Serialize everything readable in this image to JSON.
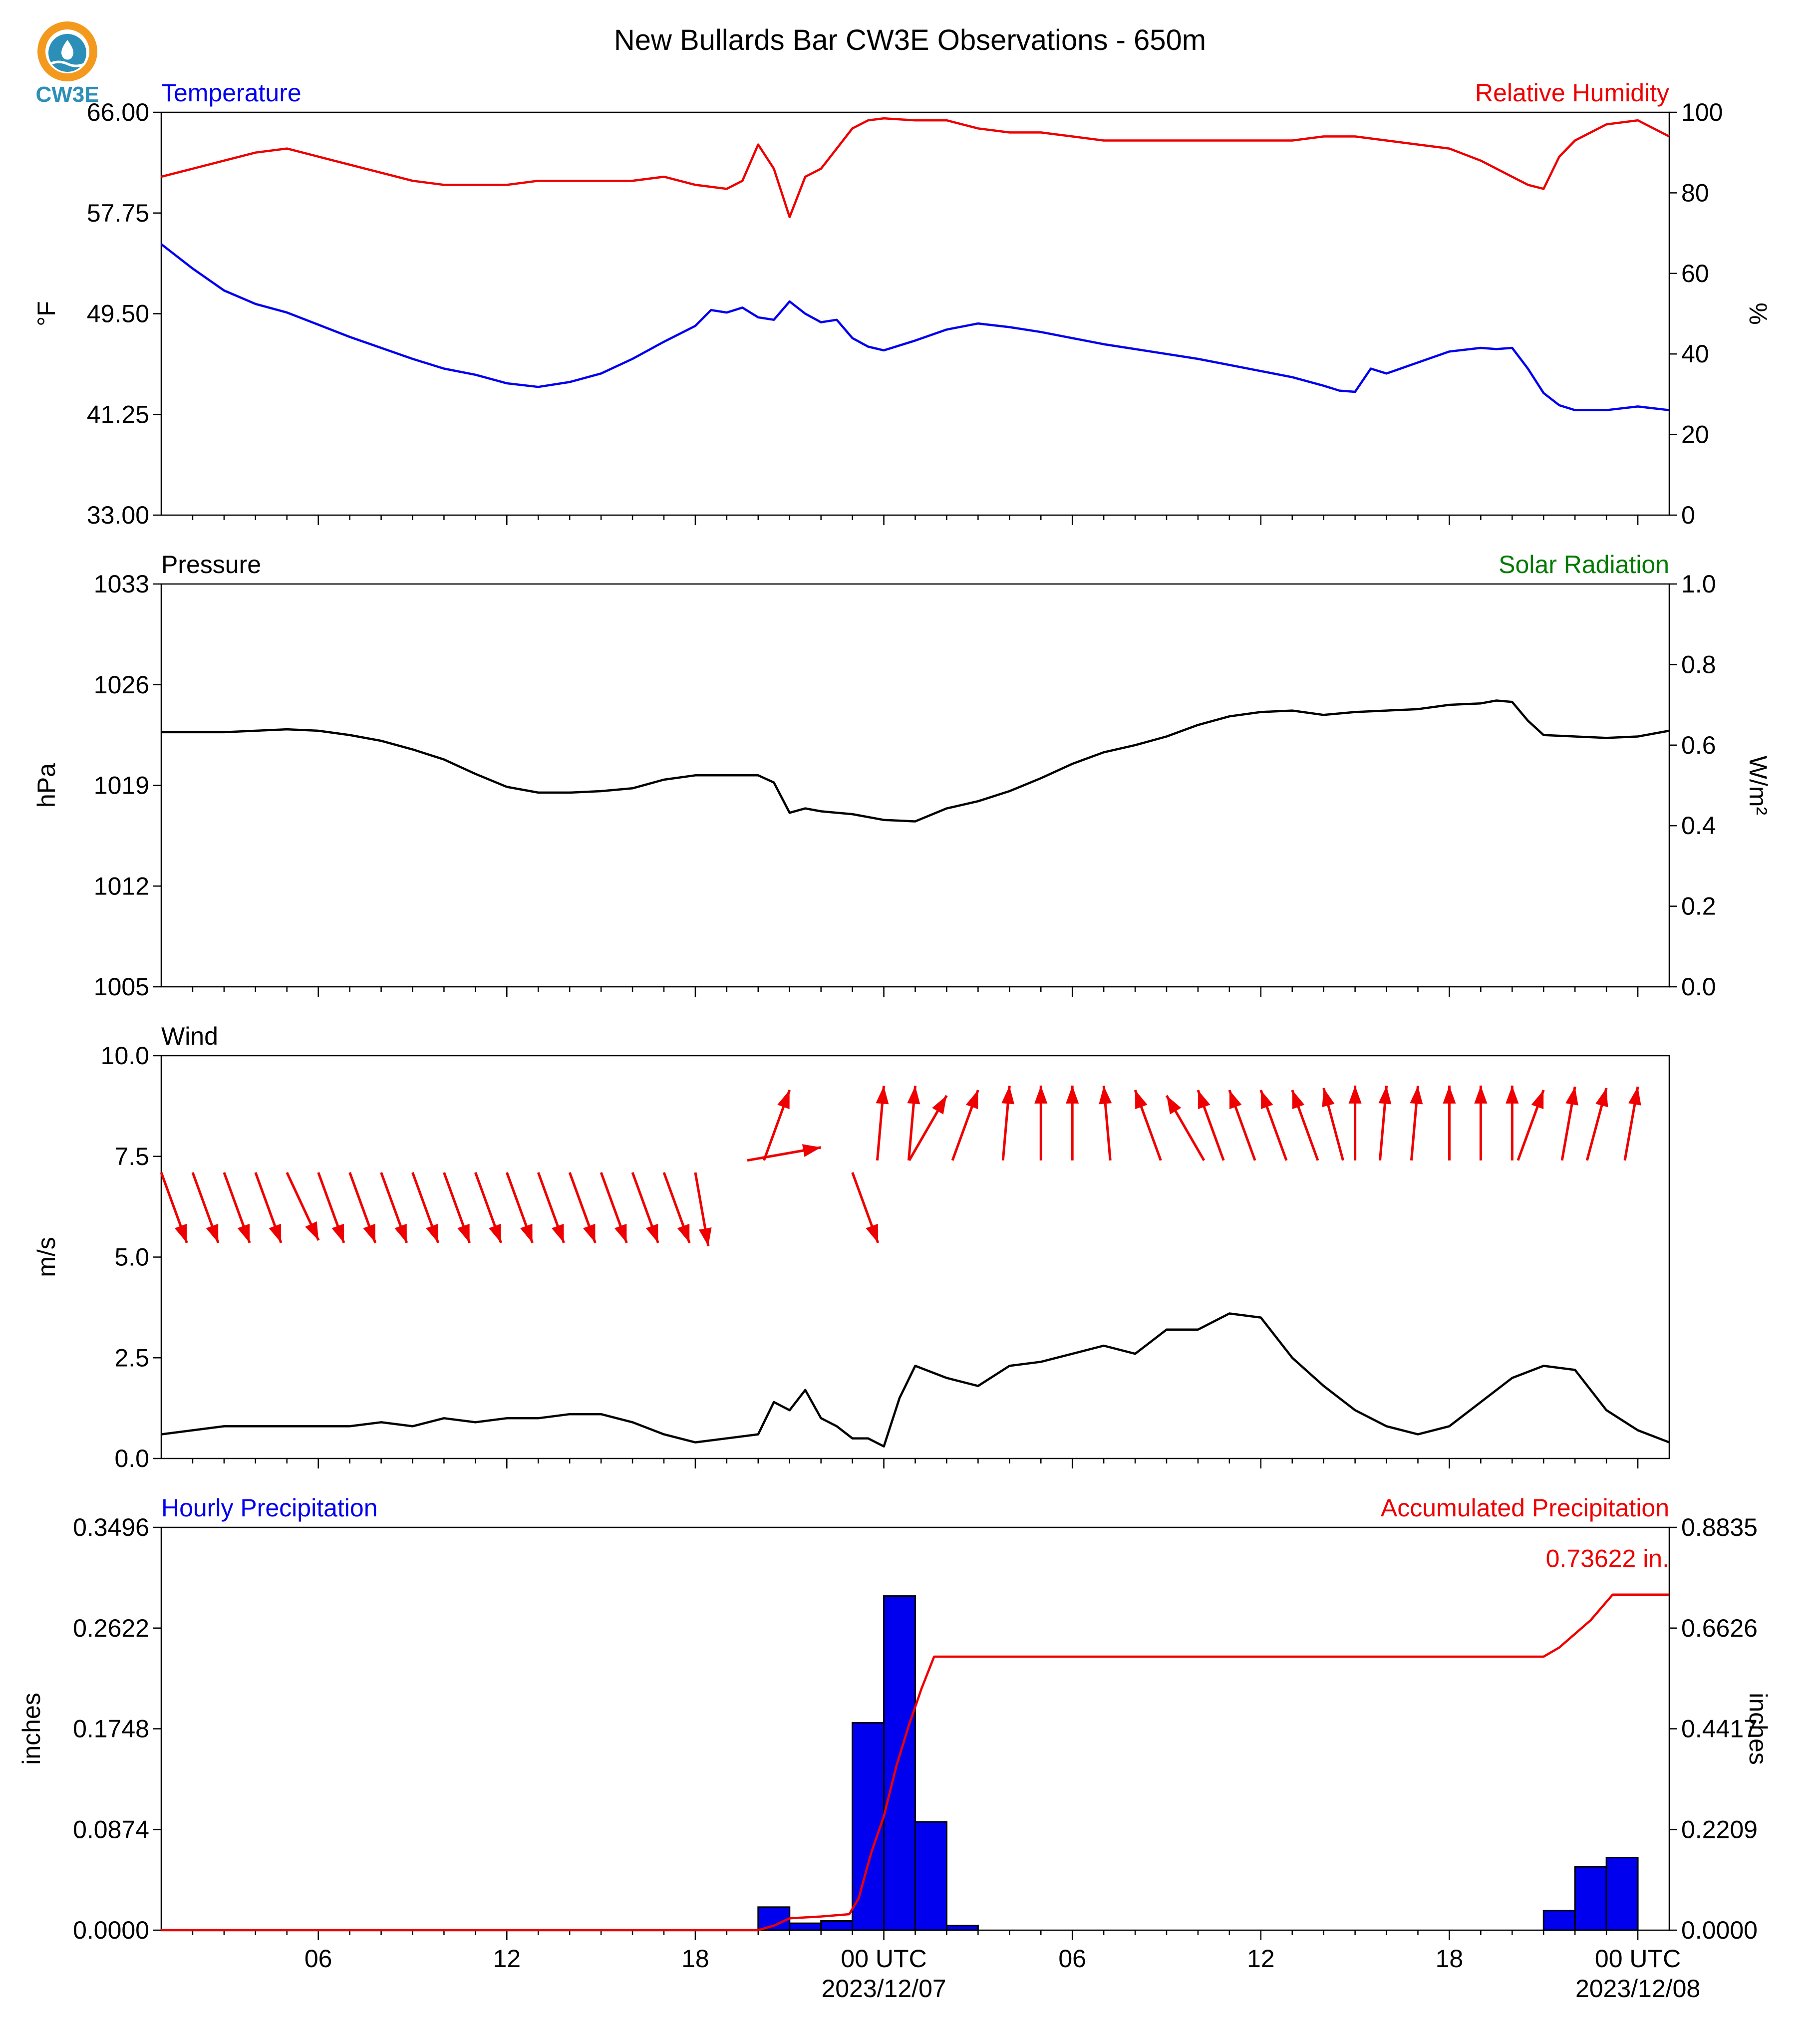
{
  "figure": {
    "title": "New Bullards Bar CW3E Observations - 650m",
    "logo_text": "CW3E",
    "colors": {
      "blue": "#0000ee",
      "red": "#ee0000",
      "green": "#007a00",
      "black": "#000000"
    }
  },
  "x_axis": {
    "tick_labels": [
      "06",
      "12",
      "18",
      "00 UTC",
      "06",
      "12",
      "18",
      "00 UTC"
    ],
    "tick_hours": [
      6,
      12,
      18,
      24,
      30,
      36,
      42,
      48
    ],
    "date_labels": [
      "2023/12/07",
      "2023/12/08"
    ],
    "date_hours": [
      24,
      48
    ],
    "range_hours": [
      1,
      49
    ]
  },
  "chart_data": [
    {
      "type": "line",
      "left_title": "Temperature",
      "right_title": "Relative Humidity",
      "ylabel": "°F",
      "ylabel_right": "%",
      "ylim": [
        33,
        66
      ],
      "ylim_right": [
        0,
        100
      ],
      "yticks": [
        "33.00",
        "41.25",
        "49.50",
        "57.75",
        "66.00"
      ],
      "yticks_right": [
        "0",
        "20",
        "40",
        "60",
        "80",
        "100"
      ],
      "series": [
        {
          "name": "Temperature",
          "axis": "left",
          "color": "#0000ee",
          "x": [
            1,
            2,
            3,
            4,
            5,
            6,
            7,
            8,
            9,
            10,
            11,
            12,
            13,
            14,
            15,
            16,
            17,
            18,
            18.5,
            19,
            19.5,
            20,
            20.5,
            21,
            21.5,
            22,
            22.5,
            23,
            23.5,
            24,
            25,
            26,
            27,
            28,
            29,
            30,
            31,
            32,
            33,
            34,
            35,
            36,
            37,
            38,
            38.5,
            39,
            39.5,
            40,
            41,
            42,
            43,
            43.5,
            44,
            44.5,
            45,
            45.5,
            46,
            47,
            48,
            49
          ],
          "y": [
            55.2,
            53.2,
            51.4,
            50.3,
            49.6,
            48.6,
            47.6,
            46.7,
            45.8,
            45.0,
            44.5,
            43.8,
            43.5,
            43.9,
            44.6,
            45.8,
            47.2,
            48.5,
            49.8,
            49.6,
            50.0,
            49.2,
            49.0,
            50.5,
            49.5,
            48.8,
            49.0,
            47.5,
            46.8,
            46.5,
            47.3,
            48.2,
            48.7,
            48.4,
            48.0,
            47.5,
            47.0,
            46.6,
            46.2,
            45.8,
            45.3,
            44.8,
            44.3,
            43.6,
            43.2,
            43.1,
            45.0,
            44.6,
            45.5,
            46.4,
            46.7,
            46.6,
            46.7,
            45.0,
            43.0,
            42.0,
            41.6,
            41.6,
            41.9,
            41.6
          ]
        },
        {
          "name": "Relative Humidity",
          "axis": "right",
          "color": "#ee0000",
          "x": [
            1,
            2,
            3,
            4,
            5,
            6,
            7,
            8,
            9,
            10,
            11,
            12,
            13,
            14,
            15,
            16,
            17,
            18,
            19,
            19.5,
            20,
            20.5,
            21,
            21.5,
            22,
            22.5,
            23,
            23.5,
            24,
            25,
            26,
            27,
            28,
            29,
            30,
            31,
            32,
            33,
            34,
            35,
            36,
            37,
            38,
            39,
            40,
            41,
            42,
            43,
            44,
            44.5,
            45,
            45.5,
            46,
            47,
            48,
            48.5,
            49
          ],
          "y": [
            84,
            86,
            88,
            90,
            91,
            89,
            87,
            85,
            83,
            82,
            82,
            82,
            83,
            83,
            83,
            83,
            84,
            82,
            81,
            83,
            92,
            86,
            74,
            84,
            86,
            91,
            96,
            98,
            98.5,
            98,
            98,
            96,
            95,
            95,
            94,
            93,
            93,
            93,
            93,
            93,
            93,
            93,
            94,
            94,
            93,
            92,
            91,
            88,
            84,
            82,
            81,
            89,
            93,
            97,
            98,
            96,
            94
          ]
        }
      ]
    },
    {
      "type": "line",
      "left_title": "Pressure",
      "right_title": "Solar Radiation",
      "ylabel": "hPa",
      "ylabel_right": "W/m²",
      "ylim": [
        1005,
        1033
      ],
      "ylim_right": [
        0.0,
        1.0
      ],
      "yticks": [
        "1005",
        "1012",
        "1019",
        "1026",
        "1033"
      ],
      "yticks_right": [
        "0.0",
        "0.2",
        "0.4",
        "0.6",
        "0.8",
        "1.0"
      ],
      "series": [
        {
          "name": "Pressure",
          "axis": "left",
          "color": "#000000",
          "x": [
            1,
            2,
            3,
            4,
            5,
            6,
            7,
            8,
            9,
            10,
            11,
            12,
            13,
            14,
            15,
            16,
            17,
            18,
            19,
            20,
            20.5,
            21,
            21.5,
            22,
            23,
            24,
            25,
            26,
            27,
            28,
            29,
            30,
            31,
            32,
            33,
            34,
            35,
            36,
            37,
            38,
            39,
            40,
            41,
            42,
            43,
            43.5,
            44,
            44.5,
            45,
            46,
            47,
            48,
            49
          ],
          "y": [
            1022.7,
            1022.7,
            1022.7,
            1022.8,
            1022.9,
            1022.8,
            1022.5,
            1022.1,
            1021.5,
            1020.8,
            1019.8,
            1018.9,
            1018.5,
            1018.5,
            1018.6,
            1018.8,
            1019.4,
            1019.7,
            1019.7,
            1019.7,
            1019.2,
            1017.1,
            1017.4,
            1017.2,
            1017.0,
            1016.6,
            1016.5,
            1017.4,
            1017.9,
            1018.6,
            1019.5,
            1020.5,
            1021.3,
            1021.8,
            1022.4,
            1023.2,
            1023.8,
            1024.1,
            1024.2,
            1023.9,
            1024.1,
            1024.2,
            1024.3,
            1024.6,
            1024.7,
            1024.9,
            1024.8,
            1023.5,
            1022.5,
            1022.4,
            1022.3,
            1022.4,
            1022.8
          ]
        }
      ]
    },
    {
      "type": "line",
      "left_title": "Wind",
      "ylabel": "m/s",
      "ylim": [
        0.0,
        10.0
      ],
      "yticks": [
        "0.0",
        "2.5",
        "5.0",
        "7.5",
        "10.0"
      ],
      "series": [
        {
          "name": "Wind",
          "axis": "left",
          "color": "#000000",
          "x": [
            1,
            2,
            3,
            4,
            5,
            6,
            7,
            8,
            9,
            10,
            11,
            12,
            13,
            14,
            15,
            16,
            17,
            18,
            19,
            20,
            20.5,
            21,
            21.5,
            22,
            22.5,
            23,
            23.5,
            24,
            24.5,
            25,
            26,
            27,
            28,
            29,
            30,
            31,
            32,
            33,
            34,
            35,
            36,
            37,
            38,
            39,
            40,
            41,
            42,
            43,
            44,
            45,
            46,
            47,
            48,
            49
          ],
          "y": [
            0.6,
            0.7,
            0.8,
            0.8,
            0.8,
            0.8,
            0.8,
            0.9,
            0.8,
            1.0,
            0.9,
            1.0,
            1.0,
            1.1,
            1.1,
            0.9,
            0.6,
            0.4,
            0.5,
            0.6,
            1.4,
            1.2,
            1.7,
            1.0,
            0.8,
            0.5,
            0.5,
            0.3,
            1.5,
            2.3,
            2.0,
            1.8,
            2.3,
            2.4,
            2.6,
            2.8,
            2.6,
            3.2,
            3.2,
            3.6,
            3.5,
            2.5,
            1.8,
            1.2,
            0.8,
            0.6,
            0.8,
            1.4,
            2.0,
            2.3,
            2.2,
            1.2,
            0.7,
            0.4
          ]
        }
      ],
      "wind_arrows": {
        "color": "#ee0000",
        "hours": [
          1,
          2,
          3,
          4,
          5,
          6,
          7,
          8,
          9,
          10,
          11,
          12,
          13,
          14,
          15,
          16,
          17,
          18,
          21,
          22,
          23,
          24,
          25,
          26,
          27,
          28,
          29,
          30,
          31,
          32,
          33,
          34,
          35,
          36,
          37,
          38,
          39,
          40,
          41,
          42,
          43,
          44,
          45,
          46,
          47,
          48
        ],
        "direction_from_deg": [
          340,
          340,
          340,
          340,
          335,
          340,
          340,
          340,
          340,
          340,
          340,
          340,
          340,
          340,
          340,
          340,
          340,
          350,
          200,
          260,
          340,
          185,
          185,
          210,
          200,
          185,
          180,
          180,
          175,
          160,
          150,
          160,
          160,
          160,
          160,
          165,
          180,
          185,
          185,
          180,
          180,
          180,
          200,
          190,
          195,
          190
        ]
      }
    },
    {
      "type": "bar",
      "left_title": "Hourly Precipitation",
      "right_title": "Accumulated Precipitation",
      "ylabel": "inches",
      "ylabel_right": "inches",
      "ylim": [
        0.0,
        0.3496
      ],
      "ylim_right": [
        0.0,
        0.8835
      ],
      "yticks": [
        "0.0000",
        "0.0874",
        "0.1748",
        "0.2622",
        "0.3496"
      ],
      "yticks_right": [
        "0.0000",
        "0.2209",
        "0.4417",
        "0.6626",
        "0.8835"
      ],
      "total_label": "0.73622 in.",
      "bars": {
        "name": "Hourly Precipitation",
        "color": "#0000ee",
        "hour_start": [
          20,
          21,
          22,
          23,
          24,
          25,
          26,
          45,
          46,
          47
        ],
        "values": [
          0.02,
          0.006,
          0.008,
          0.18,
          0.29,
          0.094,
          0.004,
          0.017,
          0.055,
          0.063
        ]
      },
      "accumulated": {
        "name": "Accumulated Precipitation",
        "color": "#ee0000",
        "x": [
          1,
          20,
          20.5,
          21,
          22,
          22.9,
          23.2,
          23.6,
          24.0,
          24.4,
          24.8,
          25.2,
          25.6,
          26,
          45,
          45.5,
          46,
          46.5,
          47,
          47.2,
          49
        ],
        "y": [
          0,
          0,
          0.01,
          0.026,
          0.03,
          0.035,
          0.07,
          0.17,
          0.25,
          0.36,
          0.45,
          0.53,
          0.6,
          0.6,
          0.6,
          0.62,
          0.65,
          0.68,
          0.72,
          0.736,
          0.736
        ]
      }
    }
  ]
}
